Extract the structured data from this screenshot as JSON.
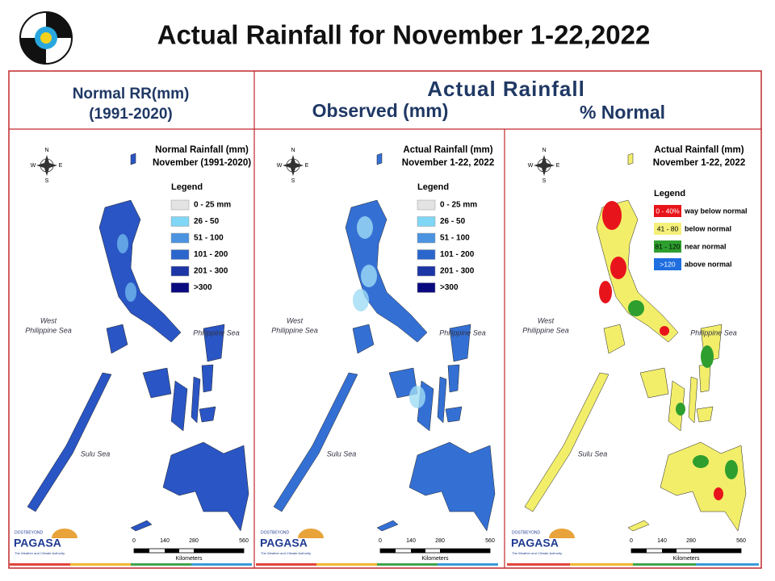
{
  "header": {
    "title": "Actual Rainfall for November 1-22,2022"
  },
  "table": {
    "left_header": [
      "Normal RR(mm)",
      "(1991-2020)"
    ],
    "right_header": {
      "title": "Actual Rainfall",
      "observed": "Observed (mm)",
      "normal": "% Normal"
    }
  },
  "map_common": {
    "compass": [
      "N",
      "S",
      "E",
      "W"
    ],
    "seas": [
      "West",
      "Philippine Sea",
      "Philippine Sea",
      "Sulu Sea"
    ],
    "scale": [
      "0",
      "140",
      "280",
      "560"
    ],
    "scale_unit": "Kilometers",
    "logo": [
      "DOST",
      "BEYOND",
      "PAGASA",
      "The Weather and Climate Authority"
    ]
  },
  "maps": [
    {
      "title": [
        "Normal Rainfall (mm)",
        "November (1991-2020)"
      ],
      "legend_title": "Legend",
      "legend": [
        {
          "label": "0 - 25 mm",
          "color": "#e3e3e3"
        },
        {
          "label": "26 - 50",
          "color": "#7fd6f5"
        },
        {
          "label": "51 - 100",
          "color": "#4b93e0"
        },
        {
          "label": "101 - 200",
          "color": "#2a66cc"
        },
        {
          "label": "201 - 300",
          "color": "#1c36a6"
        },
        {
          "label": ">300",
          "color": "#0a0a80"
        }
      ]
    },
    {
      "title": [
        "Actual Rainfall (mm)",
        "November 1-22, 2022"
      ],
      "legend_title": "Legend",
      "legend": [
        {
          "label": "0 - 25 mm",
          "color": "#e3e3e3"
        },
        {
          "label": "26 - 50",
          "color": "#7fd6f5"
        },
        {
          "label": "51 - 100",
          "color": "#4b93e0"
        },
        {
          "label": "101 - 200",
          "color": "#2a66cc"
        },
        {
          "label": "201 - 300",
          "color": "#1c36a6"
        },
        {
          "label": ">300",
          "color": "#0a0a80"
        }
      ]
    },
    {
      "title": [
        "Actual Rainfall (mm)",
        "November 1-22, 2022"
      ],
      "legend_title": "Legend",
      "legend": [
        {
          "label": "0 - 40%",
          "description": "way below normal",
          "color": "#e8141b"
        },
        {
          "label": "41 - 80",
          "description": "below normal",
          "color": "#f5f07a"
        },
        {
          "label": "81 - 120",
          "description": "near normal",
          "color": "#2e9e2e"
        },
        {
          "label": ">120",
          "description": "above normal",
          "color": "#1f6fe0"
        }
      ]
    }
  ]
}
